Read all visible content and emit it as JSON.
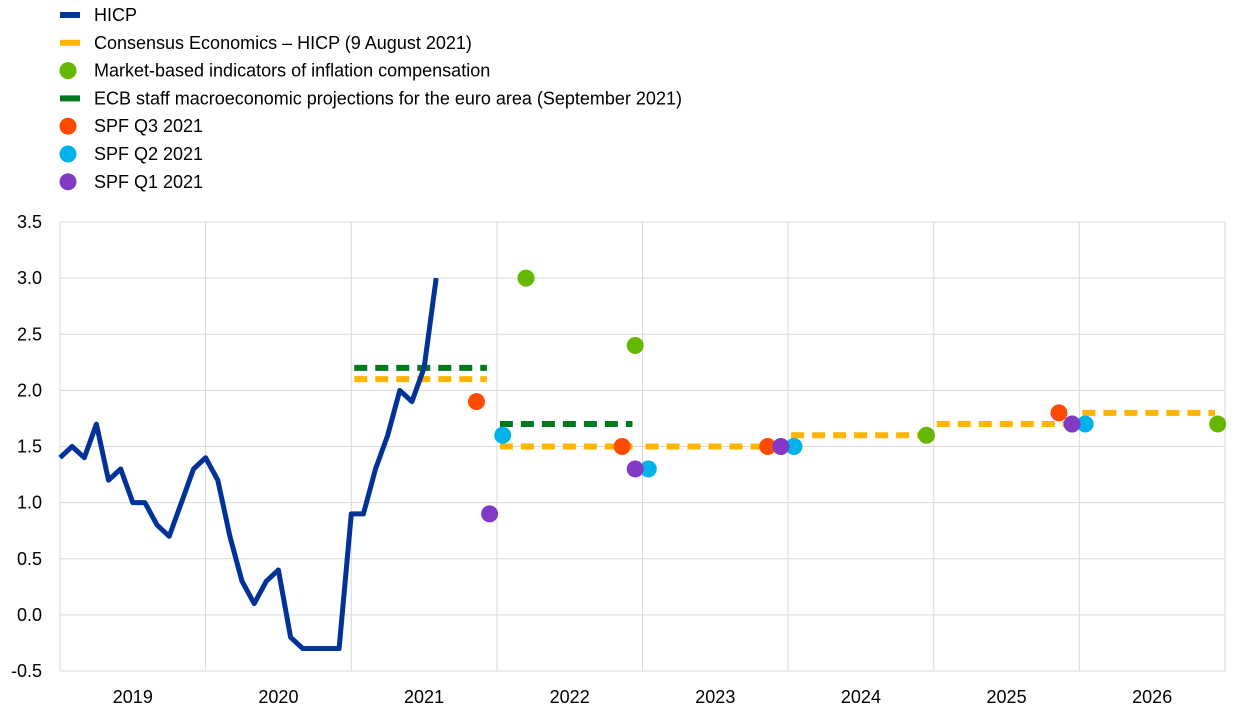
{
  "chart_data": {
    "type": "line",
    "title": "",
    "xlabel": "",
    "ylabel": "",
    "ylim": [
      -0.5,
      3.5
    ],
    "yticks": [
      "3.5",
      "3.0",
      "2.5",
      "2.0",
      "1.5",
      "1.0",
      "0.5",
      "0.0",
      "-0.5"
    ],
    "xticks": [
      "2019",
      "2020",
      "2021",
      "2022",
      "2023",
      "2024",
      "2025",
      "2026"
    ],
    "grid": true,
    "legend_position": "top-left",
    "legend": [
      {
        "label": "HICP",
        "symbol": "line",
        "color": "#003299"
      },
      {
        "label": "Consensus Economics – HICP (9 August 2021)",
        "symbol": "dash",
        "color": "#FFB400"
      },
      {
        "label": "Market-based indicators of inflation compensation",
        "symbol": "dot",
        "color": "#65B800"
      },
      {
        "label": "ECB staff macroeconomic projections for the euro area (September 2021)",
        "symbol": "dash",
        "color": "#00781E"
      },
      {
        "label": "SPF Q3 2021",
        "symbol": "dot",
        "color": "#FF4B00"
      },
      {
        "label": "SPF Q2 2021",
        "symbol": "dot",
        "color": "#00B1EA"
      },
      {
        "label": "SPF Q1 2021",
        "symbol": "dot",
        "color": "#8139C6"
      }
    ],
    "hicp": {
      "name": "HICP",
      "color": "#003299",
      "start": "2019-01",
      "frequency": "monthly",
      "values": [
        1.4,
        1.5,
        1.4,
        1.7,
        1.2,
        1.3,
        1.0,
        1.0,
        0.8,
        0.7,
        1.0,
        1.3,
        1.4,
        1.2,
        0.7,
        0.3,
        0.1,
        0.3,
        0.4,
        -0.2,
        -0.3,
        -0.3,
        -0.3,
        -0.3,
        0.9,
        0.9,
        1.3,
        1.6,
        2.0,
        1.9,
        2.2,
        3.0
      ]
    },
    "consensus": {
      "name": "Consensus Economics – HICP (9 August 2021)",
      "color": "#FFB400",
      "years": [
        "2021",
        "2022",
        "2023",
        "2024",
        "2025",
        "2026"
      ],
      "values": [
        2.1,
        1.5,
        1.5,
        1.6,
        1.7,
        1.8
      ]
    },
    "ecb_projections": {
      "name": "ECB staff macroeconomic projections for the euro area (September 2021)",
      "color": "#00781E",
      "years": [
        "2021",
        "2022",
        "2023"
      ],
      "values": [
        2.2,
        1.7,
        1.5
      ]
    },
    "market_based": {
      "name": "Market-based indicators of inflation compensation",
      "color": "#65B800",
      "points": [
        {
          "x": 2021.7,
          "y": 3.0
        },
        {
          "x": 2022.45,
          "y": 2.4
        },
        {
          "x": 2023.45,
          "y": 1.5
        },
        {
          "x": 2024.45,
          "y": 1.6
        },
        {
          "x": 2025.45,
          "y": 1.7
        },
        {
          "x": 2026.45,
          "y": 1.7
        }
      ]
    },
    "spf_q3_2021": {
      "name": "SPF Q3 2021",
      "color": "#FF4B00",
      "points": [
        {
          "x": 2021.36,
          "y": 1.9
        },
        {
          "x": 2022.36,
          "y": 1.5
        },
        {
          "x": 2023.36,
          "y": 1.5
        },
        {
          "x": 2025.36,
          "y": 1.8
        }
      ]
    },
    "spf_q2_2021": {
      "name": "SPF Q2 2021",
      "color": "#00B1EA",
      "points": [
        {
          "x": 2021.54,
          "y": 1.6
        },
        {
          "x": 2022.54,
          "y": 1.3
        },
        {
          "x": 2023.54,
          "y": 1.5
        },
        {
          "x": 2025.54,
          "y": 1.7
        }
      ]
    },
    "spf_q1_2021": {
      "name": "SPF Q1 2021",
      "color": "#8139C6",
      "points": [
        {
          "x": 2021.45,
          "y": 0.9
        },
        {
          "x": 2022.45,
          "y": 1.3
        },
        {
          "x": 2023.45,
          "y": 1.5
        },
        {
          "x": 2025.45,
          "y": 1.7
        }
      ]
    }
  }
}
